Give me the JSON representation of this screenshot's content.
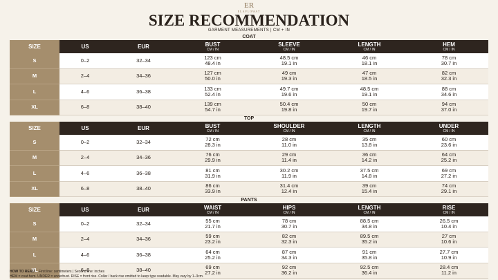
{
  "logo": {
    "mark": "ER",
    "name": "ELAFLOWAT"
  },
  "header": {
    "title": "SIZE RECOMMENDATION",
    "subtitle": "GARMENT MEASUREMENTS | CM + IN"
  },
  "unit_label": "CM / IN",
  "base_headers": [
    "SIZE",
    "US",
    "EUR"
  ],
  "sections": [
    {
      "name": "COAT",
      "columns": [
        "BUST",
        "SLEEVE",
        "LENGTH",
        "HEM"
      ],
      "rows": [
        {
          "size": "S",
          "us": "0–2",
          "eur": "32–34",
          "cells": [
            [
              "123 cm",
              "48.4 in"
            ],
            [
              "48.5 cm",
              "19.1 in"
            ],
            [
              "46 cm",
              "18.1 in"
            ],
            [
              "78 cm",
              "30.7 in"
            ]
          ]
        },
        {
          "size": "M",
          "us": "2–4",
          "eur": "34–36",
          "cells": [
            [
              "127 cm",
              "50.0 in"
            ],
            [
              "49 cm",
              "19.3 in"
            ],
            [
              "47 cm",
              "18.5 in"
            ],
            [
              "82 cm",
              "32.3 in"
            ]
          ]
        },
        {
          "size": "L",
          "us": "4–6",
          "eur": "36–38",
          "cells": [
            [
              "133 cm",
              "52.4 in"
            ],
            [
              "49.7 cm",
              "19.6 in"
            ],
            [
              "48.5 cm",
              "19.1 in"
            ],
            [
              "88 cm",
              "34.6 in"
            ]
          ]
        },
        {
          "size": "XL",
          "us": "6–8",
          "eur": "38–40",
          "cells": [
            [
              "139 cm",
              "54.7 in"
            ],
            [
              "50.4 cm",
              "19.8 in"
            ],
            [
              "50 cm",
              "19.7 in"
            ],
            [
              "94 cm",
              "37.0 in"
            ]
          ]
        }
      ]
    },
    {
      "name": "TOP",
      "columns": [
        "BUST",
        "SHOULDER",
        "LENGTH",
        "UNDER"
      ],
      "rows": [
        {
          "size": "S",
          "us": "0–2",
          "eur": "32–34",
          "cells": [
            [
              "72 cm",
              "28.3 in"
            ],
            [
              "28 cm",
              "11.0 in"
            ],
            [
              "35 cm",
              "13.8 in"
            ],
            [
              "60 cm",
              "23.6 in"
            ]
          ]
        },
        {
          "size": "M",
          "us": "2–4",
          "eur": "34–36",
          "cells": [
            [
              "76 cm",
              "29.9 in"
            ],
            [
              "29 cm",
              "11.4 in"
            ],
            [
              "36 cm",
              "14.2 in"
            ],
            [
              "64 cm",
              "25.2 in"
            ]
          ]
        },
        {
          "size": "L",
          "us": "4–6",
          "eur": "36–38",
          "cells": [
            [
              "81 cm",
              "31.9 in"
            ],
            [
              "30.2 cm",
              "11.9 in"
            ],
            [
              "37.5 cm",
              "14.8 in"
            ],
            [
              "69 cm",
              "27.2 in"
            ]
          ]
        },
        {
          "size": "XL",
          "us": "6–8",
          "eur": "38–40",
          "cells": [
            [
              "86 cm",
              "33.9 in"
            ],
            [
              "31.4 cm",
              "12.4 in"
            ],
            [
              "39 cm",
              "15.4 in"
            ],
            [
              "74 cm",
              "29.1 in"
            ]
          ]
        }
      ]
    },
    {
      "name": "PANTS",
      "columns": [
        "WAIST",
        "HIPS",
        "LENGTH",
        "RISE"
      ],
      "rows": [
        {
          "size": "S",
          "us": "0–2",
          "eur": "32–34",
          "cells": [
            [
              "55 cm",
              "21.7 in"
            ],
            [
              "78 cm",
              "30.7 in"
            ],
            [
              "88.5 cm",
              "34.8 in"
            ],
            [
              "26.5 cm",
              "10.4 in"
            ]
          ]
        },
        {
          "size": "M",
          "us": "2–4",
          "eur": "34–36",
          "cells": [
            [
              "59 cm",
              "23.2 in"
            ],
            [
              "82 cm",
              "32.3 in"
            ],
            [
              "89.5 cm",
              "35.2 in"
            ],
            [
              "27 cm",
              "10.6 in"
            ]
          ]
        },
        {
          "size": "L",
          "us": "4–6",
          "eur": "36–38",
          "cells": [
            [
              "64 cm",
              "25.2 in"
            ],
            [
              "87 cm",
              "34.3 in"
            ],
            [
              "91 cm",
              "35.8 in"
            ],
            [
              "27.7 cm",
              "10.9 in"
            ]
          ]
        },
        {
          "size": "XL",
          "us": "6–8",
          "eur": "38–40",
          "cells": [
            [
              "69 cm",
              "27.2 in"
            ],
            [
              "92 cm",
              "36.2 in"
            ],
            [
              "92.5 cm",
              "36.4 in"
            ],
            [
              "28.4 cm",
              "11.2 in"
            ]
          ]
        }
      ]
    }
  ],
  "footer": {
    "label": "HOW TO READ",
    "line1": "First line: centimeters  |  Second line: inches",
    "line2": "HEM = coat hem. UNDER = underbust. RISE = front rise. Collar / back rise omitted to keep type readable. May vary by 1–3cm."
  }
}
